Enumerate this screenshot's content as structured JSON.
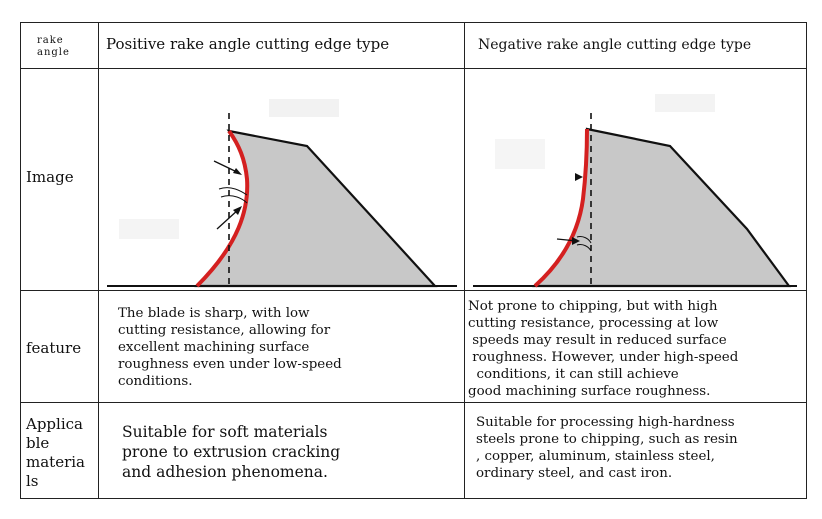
{
  "table": {
    "header": {
      "col0": "rake\nangle",
      "col1": "Positive rake angle cutting edge type",
      "col2": "Negative rake angle cutting edge type"
    },
    "rows": {
      "image": {
        "label": "Image"
      },
      "feature": {
        "label": "feature",
        "positive": "The blade is sharp, with low\ncutting resistance, allowing for\nexcellent machining surface\nroughness even under low-speed\nconditions.",
        "negative": "Not prone to chipping, but with high\ncutting resistance, processing at low\n speeds may result in reduced surface\n roughness. However, under high-speed\n  conditions, it can still achieve\ngood machining surface roughness."
      },
      "materials": {
        "label": "Applica\nble\nmateria\nls",
        "positive": "Suitable for soft materials\nprone to extrusion cracking\nand adhesion phenomena.",
        "negative": "Suitable for processing high-hardness\nsteels prone to chipping, such as resin\n, copper, aluminum, stainless steel,\nordinary steel, and cast iron."
      }
    }
  },
  "colors": {
    "grid": "#222222",
    "tool_fill": "#c8c8c8",
    "cutting_edge": "#d42020",
    "outline": "#111111"
  }
}
